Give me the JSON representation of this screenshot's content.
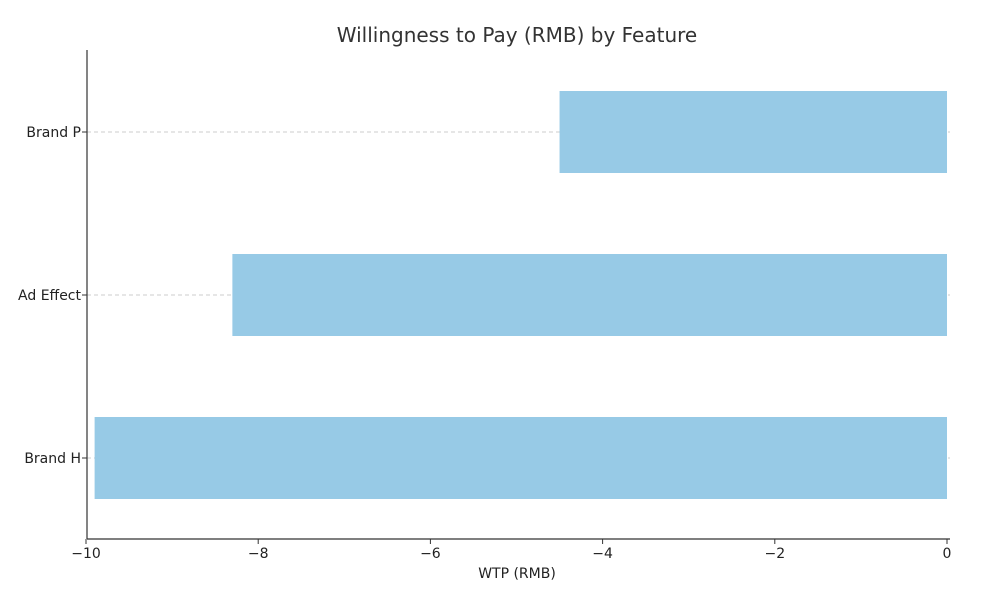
{
  "chart_data": {
    "type": "bar",
    "orientation": "horizontal",
    "title": "Willingness to Pay (RMB) by Feature",
    "xlabel": "WTP (RMB)",
    "ylabel": "",
    "categories": [
      "Brand H",
      "Ad Effect",
      "Brand P"
    ],
    "values": [
      -9.9,
      -8.3,
      -4.5
    ],
    "xlim": [
      -10.4,
      0
    ],
    "xticks": [
      -10,
      -8,
      -6,
      -4,
      -2,
      0
    ],
    "xtick_labels": [
      "−10",
      "−8",
      "−6",
      "−4",
      "−2",
      "0"
    ],
    "bar_color": "#97cae6",
    "grid": "horizontal dashed at categories",
    "legend": "none"
  }
}
